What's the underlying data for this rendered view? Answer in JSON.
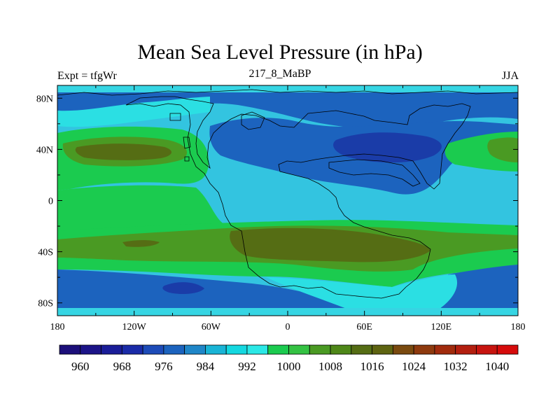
{
  "map": {
    "title": "Mean Sea Level Pressure (in hPa)",
    "left_subtitle": "Expt = tfgWr",
    "center_subtitle": "217_8_MaBP",
    "right_subtitle": "JJA",
    "lon_ticks": [
      "180",
      "120W",
      "60W",
      "0",
      "60E",
      "120E",
      "180"
    ],
    "lat_ticks": [
      "80N",
      "40N",
      "0",
      "40S",
      "80S"
    ],
    "lon_values": [
      -180,
      -120,
      -60,
      0,
      60,
      120,
      180
    ],
    "lat_values": [
      80,
      40,
      0,
      -40,
      -80
    ],
    "lon_range": [
      -180,
      180
    ],
    "lat_range": [
      -90,
      90
    ]
  },
  "colorbar": {
    "labels": [
      "960",
      "968",
      "976",
      "984",
      "992",
      "1000",
      "1008",
      "1016",
      "1024",
      "1032",
      "1040"
    ],
    "colors": [
      "#1c0f7a",
      "#1c1488",
      "#1a1d98",
      "#1a2ba8",
      "#1d4bb8",
      "#1c63be",
      "#1f86c8",
      "#19b4d6",
      "#14d8e0",
      "#2be8e6",
      "#1bcb4f",
      "#34c243",
      "#4a9a23",
      "#4e8718",
      "#556d14",
      "#5e6411",
      "#7a4a0f",
      "#8e3a0e",
      "#a12b0d",
      "#b31f0f",
      "#c7140f",
      "#d60b0b"
    ]
  }
}
